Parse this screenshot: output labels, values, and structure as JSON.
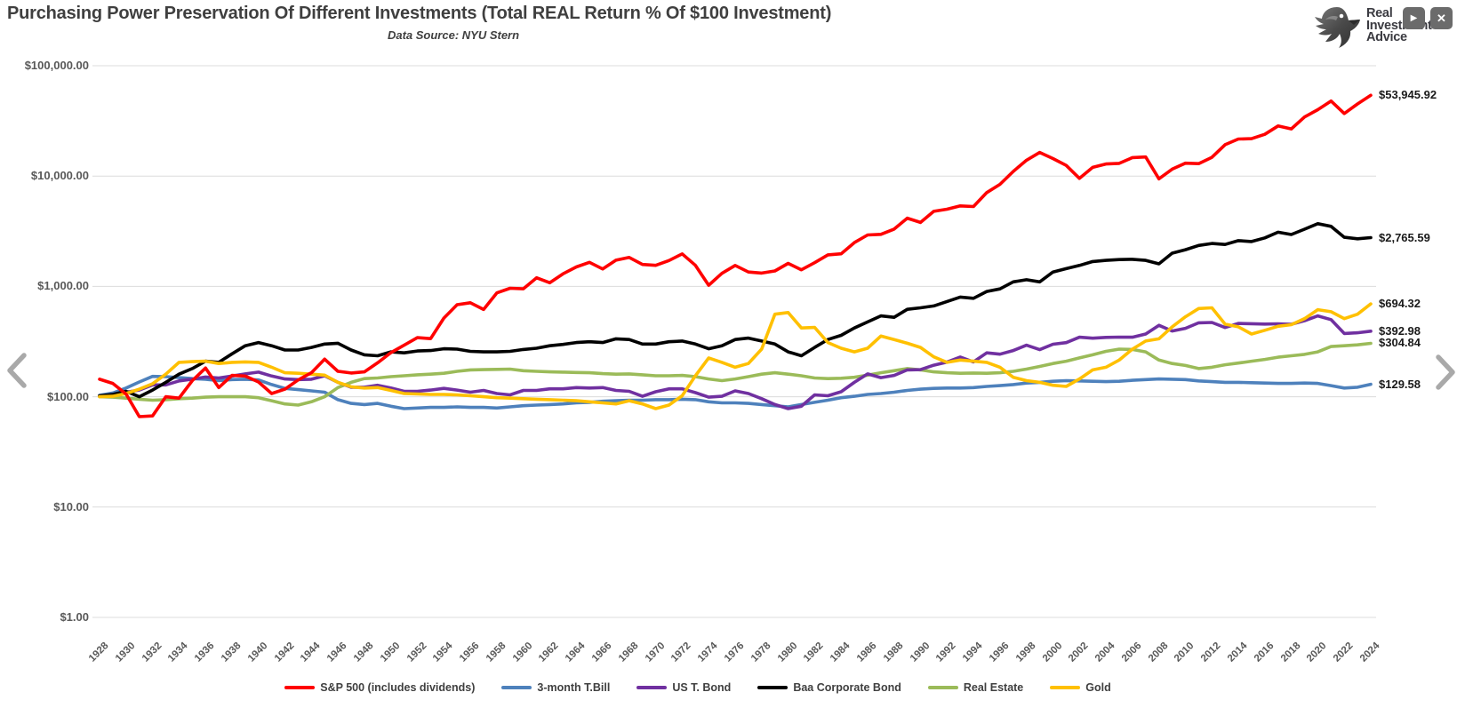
{
  "header": {
    "title": "Purchasing Power Preservation Of Different Investments (Total REAL Return % Of $100 Investment)",
    "subtitle": "Data Source: NYU Stern"
  },
  "brand": {
    "line1": "Real",
    "line2": "Investment",
    "line3": "Advice",
    "play_button": "▶",
    "close_button": "✕"
  },
  "nav": {
    "prev": "‹",
    "next": "›"
  },
  "chart_data": {
    "type": "line",
    "title": "Purchasing Power Preservation Of Different Investments (Total REAL Return % Of $100 Investment)",
    "subtitle": "Data Source: NYU Stern",
    "grid": "horizontal",
    "legend_position": "bottom",
    "y_axis": {
      "scale": "log",
      "min": 1,
      "max": 100000,
      "tick_values": [
        1,
        10,
        100,
        1000,
        10000,
        100000
      ],
      "tick_labels": [
        "$1.00",
        "$10.00",
        "$100.00",
        "$1,000.00",
        "$10,000.00",
        "$100,000.00"
      ]
    },
    "x_axis": {
      "start_year": 1928,
      "end_year": 2024,
      "tick_interval": 2
    },
    "series": [
      {
        "name": "S&P 500 (includes dividends)",
        "color": "#FF0000",
        "end_label": "$53,945.92",
        "values": [
          144,
          132,
          106,
          66,
          67,
          100,
          97,
          140,
          182,
          121,
          156,
          154,
          136,
          107,
          117,
          142,
          165,
          219,
          170,
          164,
          168,
          203,
          251,
          293,
          343,
          336,
          516,
          682,
          711,
          618,
          873,
          962,
          952,
          1197,
          1078,
          1301,
          1500,
          1654,
          1438,
          1728,
          1829,
          1581,
          1551,
          1715,
          1970,
          1553,
          1025,
          1313,
          1550,
          1351,
          1320,
          1380,
          1616,
          1414,
          1640,
          1932,
          1973,
          2494,
          2923,
          2962,
          3306,
          4156,
          3796,
          4794,
          5008,
          5363,
          5290,
          7081,
          8410,
          11006,
          13900,
          16362,
          14399,
          12502,
          9535,
          11995,
          12856,
          13030,
          14695,
          14893,
          9435,
          11566,
          13081,
          12966,
          14774,
          19240,
          21665,
          21815,
          23888,
          28451,
          26748,
          34305,
          39922,
          47944,
          36917,
          45022,
          53945.92
        ]
      },
      {
        "name": "3-month T.Bill",
        "color": "#4E81BC",
        "end_label": "$129.58",
        "values": [
          103,
          108,
          120,
          136,
          153,
          152,
          149,
          146,
          144,
          140,
          143,
          144,
          142,
          129,
          119,
          116,
          113,
          110,
          94,
          87,
          85,
          87,
          82,
          78,
          79,
          80,
          80,
          81,
          80,
          80,
          79,
          81,
          83,
          84,
          85,
          86,
          88,
          89,
          91,
          92,
          93,
          93,
          94,
          94,
          95,
          94,
          90,
          88,
          88,
          87,
          85,
          83,
          81,
          85,
          89,
          93,
          98,
          101,
          105,
          107,
          110,
          114,
          117,
          119,
          120,
          120,
          121,
          124,
          126,
          129,
          133,
          135,
          138,
          140,
          139,
          138,
          137,
          138,
          141,
          143,
          145,
          144,
          143,
          139,
          137,
          135,
          135,
          134,
          133,
          132,
          132,
          133,
          132,
          126,
          120,
          122,
          129.58
        ]
      },
      {
        "name": "US T. Bond",
        "color": "#7030A0",
        "end_label": "$392.98",
        "values": [
          101,
          104,
          110,
          115,
          128,
          128,
          139,
          144,
          151,
          148,
          154,
          161,
          167,
          154,
          145,
          143,
          144,
          155,
          135,
          122,
          122,
          127,
          120,
          112,
          112,
          115,
          119,
          115,
          110,
          114,
          107,
          104,
          114,
          114,
          118,
          118,
          121,
          120,
          121,
          114,
          112,
          101,
          111,
          118,
          118,
          109,
          99,
          101,
          113,
          107,
          96,
          85,
          78,
          82,
          104,
          102,
          111,
          135,
          161,
          149,
          156,
          175,
          176,
          193,
          206,
          229,
          207,
          250,
          243,
          262,
          293,
          267,
          299,
          309,
          346,
          339,
          345,
          347,
          346,
          370,
          444,
          394,
          417,
          468,
          471,
          424,
          462,
          459,
          456,
          458,
          454,
          489,
          540,
          500,
          374,
          380,
          392.98
        ]
      },
      {
        "name": "Baa Corporate Bond",
        "color": "#000000",
        "end_label": "$2,765.59",
        "values": [
          102,
          105,
          112,
          100,
          115,
          135,
          160,
          180,
          210,
          205,
          245,
          290,
          310,
          290,
          265,
          265,
          280,
          300,
          305,
          265,
          240,
          235,
          255,
          250,
          260,
          262,
          272,
          270,
          258,
          255,
          255,
          258,
          268,
          275,
          290,
          298,
          310,
          315,
          310,
          335,
          330,
          300,
          300,
          315,
          320,
          300,
          272,
          290,
          330,
          340,
          320,
          300,
          255,
          235,
          280,
          330,
          360,
          420,
          476,
          540,
          525,
          620,
          640,
          665,
          730,
          800,
          780,
          900,
          950,
          1100,
          1150,
          1100,
          1350,
          1450,
          1550,
          1680,
          1720,
          1750,
          1760,
          1720,
          1600,
          2000,
          2150,
          2350,
          2450,
          2400,
          2600,
          2550,
          2750,
          3100,
          2950,
          3300,
          3700,
          3500,
          2790,
          2700,
          2765.59
        ]
      },
      {
        "name": "Real Estate",
        "color": "#9BBB59",
        "end_label": "$304.84",
        "values": [
          100,
          99,
          97,
          95,
          93,
          94,
          96,
          97,
          99,
          100,
          100,
          100,
          98,
          92,
          86,
          84,
          90,
          100,
          121,
          135,
          146,
          148,
          152,
          155,
          158,
          160,
          163,
          170,
          175,
          176,
          177,
          178,
          172,
          170,
          168,
          167,
          166,
          165,
          162,
          160,
          161,
          158,
          155,
          155,
          156,
          152,
          145,
          140,
          145,
          152,
          160,
          165,
          160,
          155,
          148,
          146,
          147,
          150,
          157,
          165,
          172,
          180,
          175,
          168,
          165,
          163,
          164,
          163,
          165,
          170,
          178,
          188,
          200,
          210,
          225,
          240,
          258,
          270,
          268,
          255,
          215,
          200,
          192,
          180,
          185,
          195,
          202,
          210,
          218,
          228,
          235,
          242,
          255,
          285,
          290,
          295,
          304.84
        ]
      },
      {
        "name": "Gold",
        "color": "#FFC000",
        "end_label": "$694.32",
        "values": [
          100,
          101,
          107,
          117,
          131,
          160,
          205,
          208,
          210,
          200,
          205,
          207,
          205,
          185,
          165,
          163,
          160,
          157,
          135,
          123,
          120,
          121,
          114,
          107,
          106,
          105,
          105,
          104,
          102,
          100,
          98,
          97,
          96,
          95,
          94,
          93,
          92,
          90,
          88,
          86,
          92,
          86,
          78,
          84,
          102,
          155,
          225,
          205,
          185,
          200,
          270,
          560,
          580,
          420,
          425,
          310,
          275,
          255,
          275,
          355,
          330,
          305,
          280,
          230,
          205,
          215,
          210,
          205,
          185,
          150,
          140,
          135,
          127,
          124,
          145,
          175,
          185,
          215,
          270,
          320,
          335,
          430,
          530,
          630,
          640,
          455,
          430,
          370,
          400,
          435,
          450,
          510,
          615,
          590,
          510,
          560,
          694.32
        ]
      }
    ],
    "draw_order": [
      1,
      4,
      2,
      3,
      5,
      0
    ],
    "colors": {
      "grid": "#dcdcdc",
      "axis_text": "#595959",
      "title_text": "#3f3f3f",
      "chevron": "#a9a9a9"
    }
  }
}
